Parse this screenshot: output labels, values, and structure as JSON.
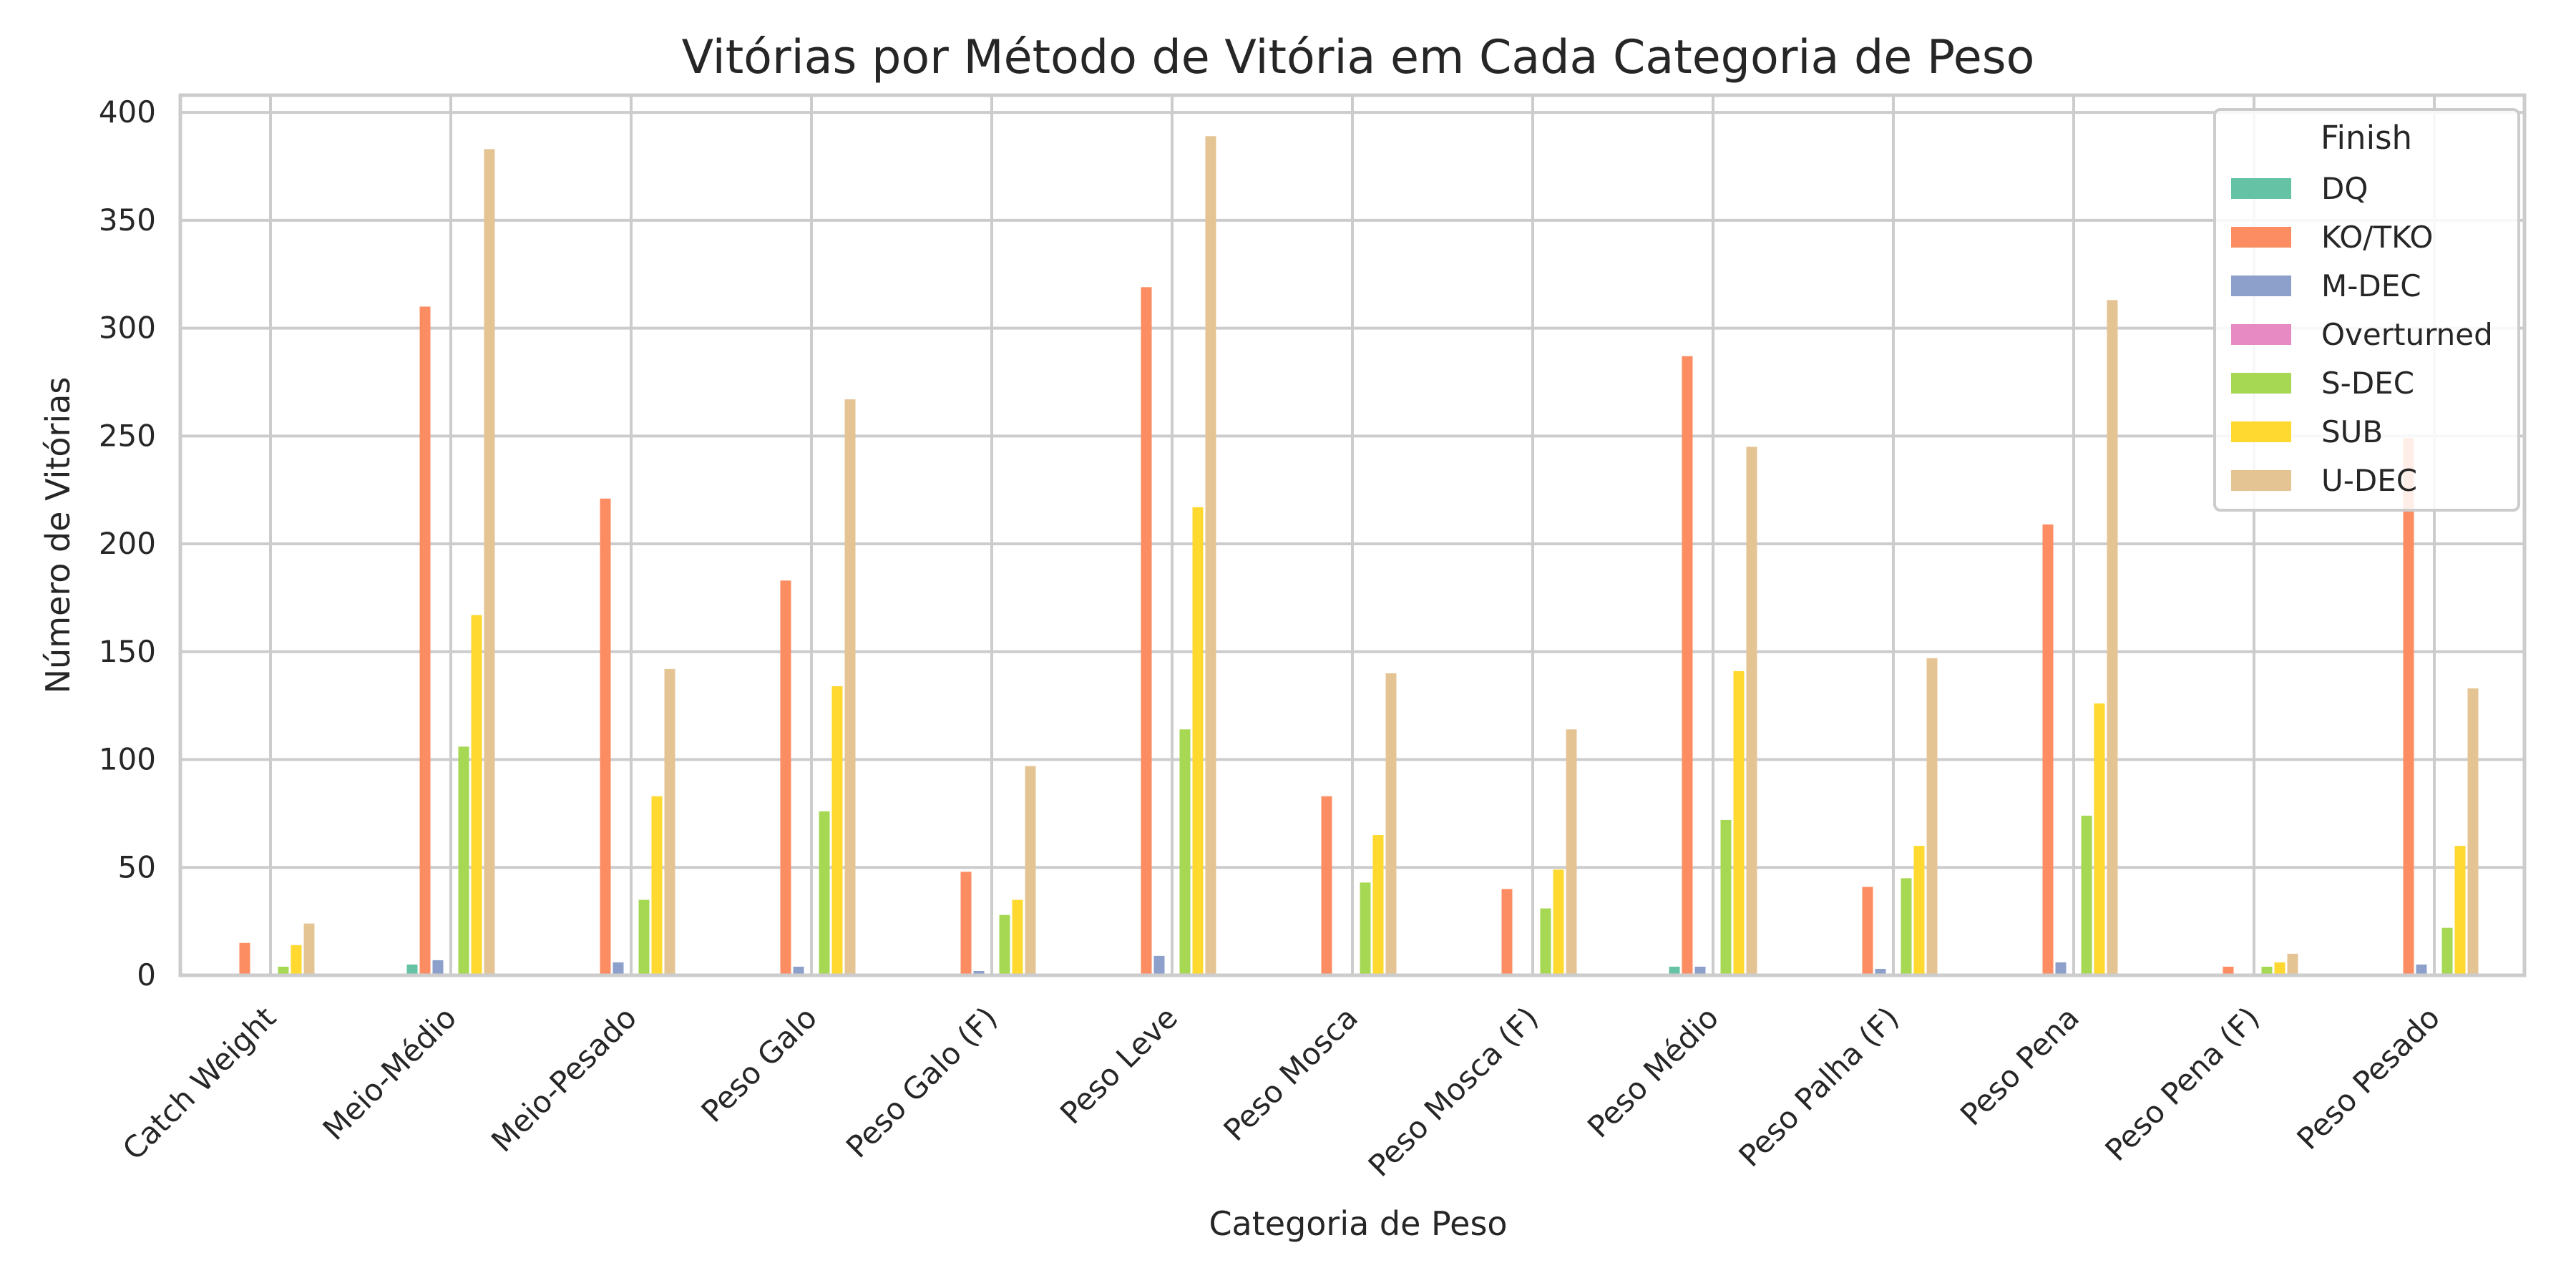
{
  "chart_data": {
    "type": "bar",
    "title": "Vitórias por Método de Vitória em Cada Categoria de Peso",
    "xlabel": "Categoria de Peso",
    "ylabel": "Número de Vitórias",
    "ylim": [
      0,
      408
    ],
    "yticks": [
      0,
      50,
      100,
      150,
      200,
      250,
      300,
      350,
      400
    ],
    "grid": true,
    "legend_title": "Finish",
    "legend_position": "top-right",
    "categories": [
      "Catch Weight",
      "Meio-Médio",
      "Meio-Pesado",
      "Peso Galo",
      "Peso Galo (F)",
      "Peso Leve",
      "Peso Mosca",
      "Peso Mosca (F)",
      "Peso Médio",
      "Peso Palha (F)",
      "Peso Pena",
      "Peso Pena (F)",
      "Peso Pesado"
    ],
    "series": [
      {
        "name": "DQ",
        "color": "#66c2a5",
        "values": [
          0,
          5,
          0,
          0,
          0,
          0,
          0,
          0,
          4,
          0,
          0,
          0,
          0
        ]
      },
      {
        "name": "KO/TKO",
        "color": "#fc8d62",
        "values": [
          15,
          310,
          221,
          183,
          48,
          319,
          83,
          40,
          287,
          41,
          209,
          4,
          249
        ]
      },
      {
        "name": "M-DEC",
        "color": "#8da0cb",
        "values": [
          0,
          7,
          6,
          4,
          2,
          9,
          0,
          0,
          4,
          3,
          6,
          0,
          5
        ]
      },
      {
        "name": "Overturned",
        "color": "#e78ac3",
        "values": [
          0,
          0,
          0,
          0,
          0,
          0,
          0,
          0,
          0,
          0,
          0,
          0,
          0
        ]
      },
      {
        "name": "S-DEC",
        "color": "#a6d854",
        "values": [
          4,
          106,
          35,
          76,
          28,
          114,
          43,
          31,
          72,
          45,
          74,
          4,
          22
        ]
      },
      {
        "name": "SUB",
        "color": "#ffd92f",
        "values": [
          14,
          167,
          83,
          134,
          35,
          217,
          65,
          49,
          141,
          60,
          126,
          6,
          60
        ]
      },
      {
        "name": "U-DEC",
        "color": "#e5c494",
        "values": [
          24,
          383,
          142,
          267,
          97,
          389,
          140,
          114,
          245,
          147,
          313,
          10,
          133
        ]
      }
    ]
  }
}
